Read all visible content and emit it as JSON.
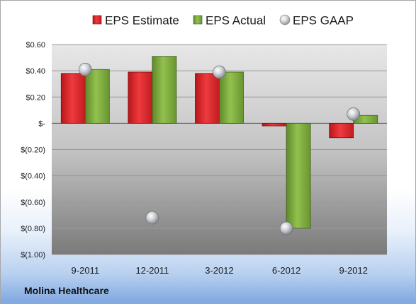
{
  "chart_data": {
    "type": "bar",
    "categories": [
      "9-2011",
      "12-2011",
      "3-2012",
      "6-2012",
      "9-2012"
    ],
    "series": [
      {
        "name": "EPS Estimate",
        "kind": "bar",
        "color": "#d42024",
        "values": [
          0.38,
          0.39,
          0.38,
          -0.02,
          -0.11
        ]
      },
      {
        "name": "EPS Actual",
        "kind": "bar",
        "color": "#76a33a",
        "values": [
          0.41,
          0.51,
          0.39,
          -0.8,
          0.06
        ]
      },
      {
        "name": "EPS GAAP",
        "kind": "marker",
        "color": "#b9bdc2",
        "values": [
          0.41,
          -0.72,
          0.39,
          -0.8,
          0.07
        ]
      }
    ],
    "yticks": [
      0.6,
      0.4,
      0.2,
      0,
      -0.2,
      -0.4,
      -0.6,
      -0.8,
      -1.0
    ],
    "ytick_labels": [
      "$0.60",
      "$0.40",
      "$0.20",
      "$-",
      "$(0.20)",
      "$(0.40)",
      "$(0.60)",
      "$(0.80)",
      "$(1.00)"
    ],
    "ylim": [
      -1.0,
      0.6
    ],
    "grid": true,
    "legend_position": "top"
  },
  "footer": {
    "company": "Molina Healthcare"
  }
}
